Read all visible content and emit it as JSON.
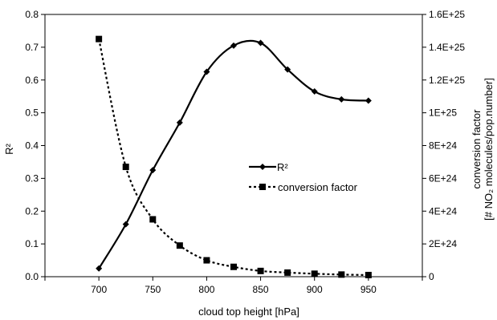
{
  "chart_data": {
    "type": "line",
    "x": [
      700,
      725,
      750,
      775,
      800,
      825,
      850,
      875,
      900,
      925,
      950
    ],
    "xlabel": "cloud top height [hPa]",
    "x_ticks": [
      "700",
      "750",
      "800",
      "850",
      "900",
      "950"
    ],
    "xlim": [
      650,
      1000
    ],
    "ylabel_left": "R²",
    "ylim_left": [
      0,
      0.8
    ],
    "y_ticks_left": [
      "0.0",
      "0.1",
      "0.2",
      "0.3",
      "0.4",
      "0.5",
      "0.6",
      "0.7",
      "0.8"
    ],
    "ylabel_right_line1": "conversion factor",
    "ylabel_right_line2": "[# NO₂ molecules/pop.number]",
    "ylim_right": [
      0,
      1.6e+25
    ],
    "y_ticks_right": [
      "0",
      "2E+24",
      "4E+24",
      "6E+24",
      "8E+24",
      "1E+25",
      "1.2E+25",
      "1.4E+25",
      "1.6E+25"
    ],
    "grid": false,
    "legend_position": "center",
    "series": [
      {
        "name": "R²",
        "axis": "left",
        "line_style": "solid",
        "marker": "diamond",
        "values": [
          0.025,
          0.16,
          0.325,
          0.47,
          0.625,
          0.705,
          0.713,
          0.632,
          0.565,
          0.541,
          0.537
        ]
      },
      {
        "name": "conversion factor",
        "axis": "right",
        "line_style": "dotted",
        "marker": "square",
        "values": [
          1.45e+25,
          6.7e+24,
          3.5e+24,
          1.9e+24,
          1e+24,
          6e+23,
          3.5e+23,
          2.5e+23,
          1.8e+23,
          1.3e+23,
          1e+23
        ]
      }
    ]
  }
}
